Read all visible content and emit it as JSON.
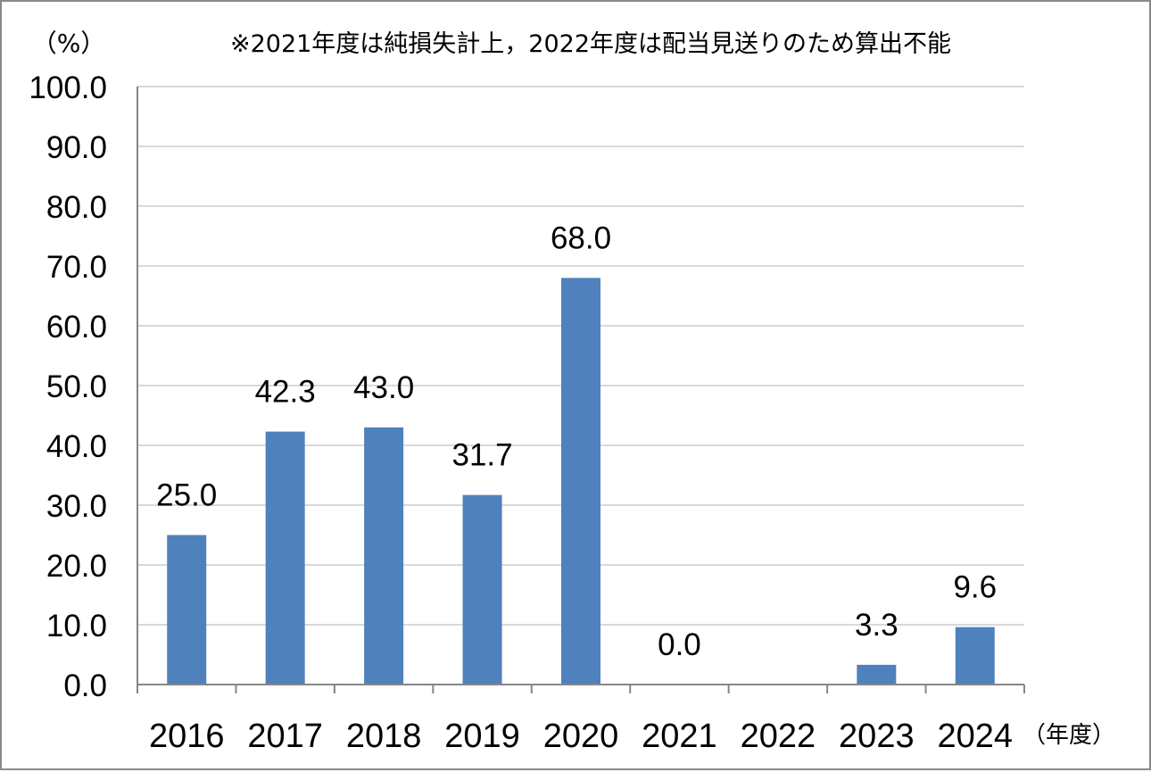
{
  "chart_data": {
    "type": "bar",
    "title": "",
    "note": "※2021年度は純損失計上，2022年度は配当見送りのため算出不能",
    "ylabel": "（%）",
    "xlabel": "（年度）",
    "categories": [
      "2016",
      "2017",
      "2018",
      "2019",
      "2020",
      "2021",
      "2022",
      "2023",
      "2024"
    ],
    "values": [
      25.0,
      42.3,
      43.0,
      31.7,
      68.0,
      0.0,
      null,
      3.3,
      9.6
    ],
    "data_labels": [
      "25.0",
      "42.3",
      "43.0",
      "31.7",
      "68.0",
      "0.0",
      "",
      "3.3",
      "9.6"
    ],
    "ylim": [
      0,
      100
    ],
    "yticks": [
      0,
      10,
      20,
      30,
      40,
      50,
      60,
      70,
      80,
      90,
      100
    ],
    "ytick_labels": [
      "0.0",
      "10.0",
      "20.0",
      "30.0",
      "40.0",
      "50.0",
      "60.0",
      "70.0",
      "80.0",
      "90.0",
      "100.0"
    ],
    "grid": true,
    "legend": "none",
    "colors": {
      "bar": "#4f81bd",
      "grid": "#d9d9d9",
      "axis": "#868686"
    }
  }
}
